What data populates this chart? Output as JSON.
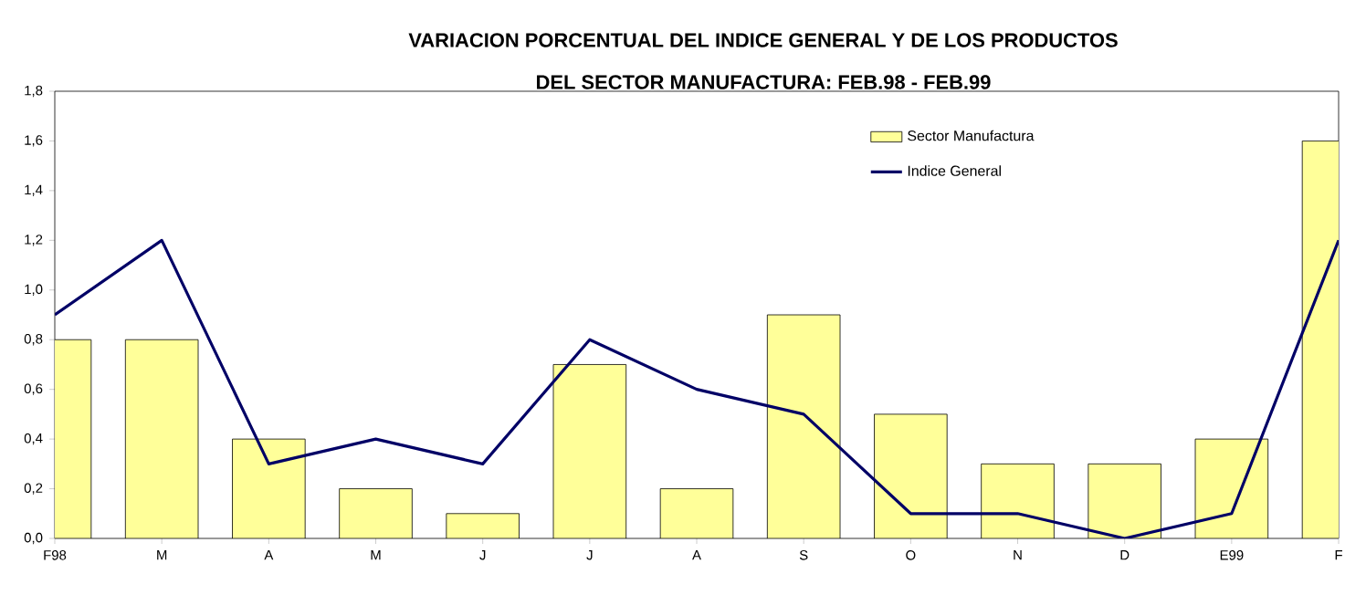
{
  "chart_data": {
    "type": "bar",
    "title": "VARIACION PORCENTUAL DEL INDICE GENERAL Y DE LOS PRODUCTOS",
    "subtitle": "DEL SECTOR MANUFACTURA: FEB.98 - FEB.99",
    "categories": [
      "F98",
      "M",
      "A",
      "M",
      "J",
      "J",
      "A",
      "S",
      "O",
      "N",
      "D",
      "E99",
      "F"
    ],
    "series": [
      {
        "name": "Sector Manufactura",
        "color": "#ffff99",
        "values": [
          0.8,
          0.8,
          0.4,
          0.2,
          0.1,
          0.7,
          0.2,
          0.9,
          0.5,
          0.3,
          0.3,
          0.4,
          1.6
        ]
      },
      {
        "name": "Indice General",
        "type": "line",
        "color": "#000066",
        "values": [
          0.9,
          1.2,
          0.3,
          0.4,
          0.3,
          0.8,
          0.6,
          0.5,
          0.1,
          0.1,
          0.0,
          0.1,
          1.2
        ]
      }
    ],
    "ylim": [
      0,
      1.8
    ],
    "yticks": [
      {
        "value": 0,
        "label": "0,0"
      },
      {
        "value": 0.2,
        "label": "0,2"
      },
      {
        "value": 0.4,
        "label": "0,4"
      },
      {
        "value": 0.6,
        "label": "0,6"
      },
      {
        "value": 0.8,
        "label": "0,8"
      },
      {
        "value": 1.0,
        "label": "1,0"
      },
      {
        "value": 1.2,
        "label": "1,2"
      },
      {
        "value": 1.4,
        "label": "1,4"
      },
      {
        "value": 1.6,
        "label": "1,6"
      },
      {
        "value": 1.8,
        "label": "1,8"
      }
    ],
    "legend": "top right",
    "grid": false,
    "marker": "none"
  }
}
